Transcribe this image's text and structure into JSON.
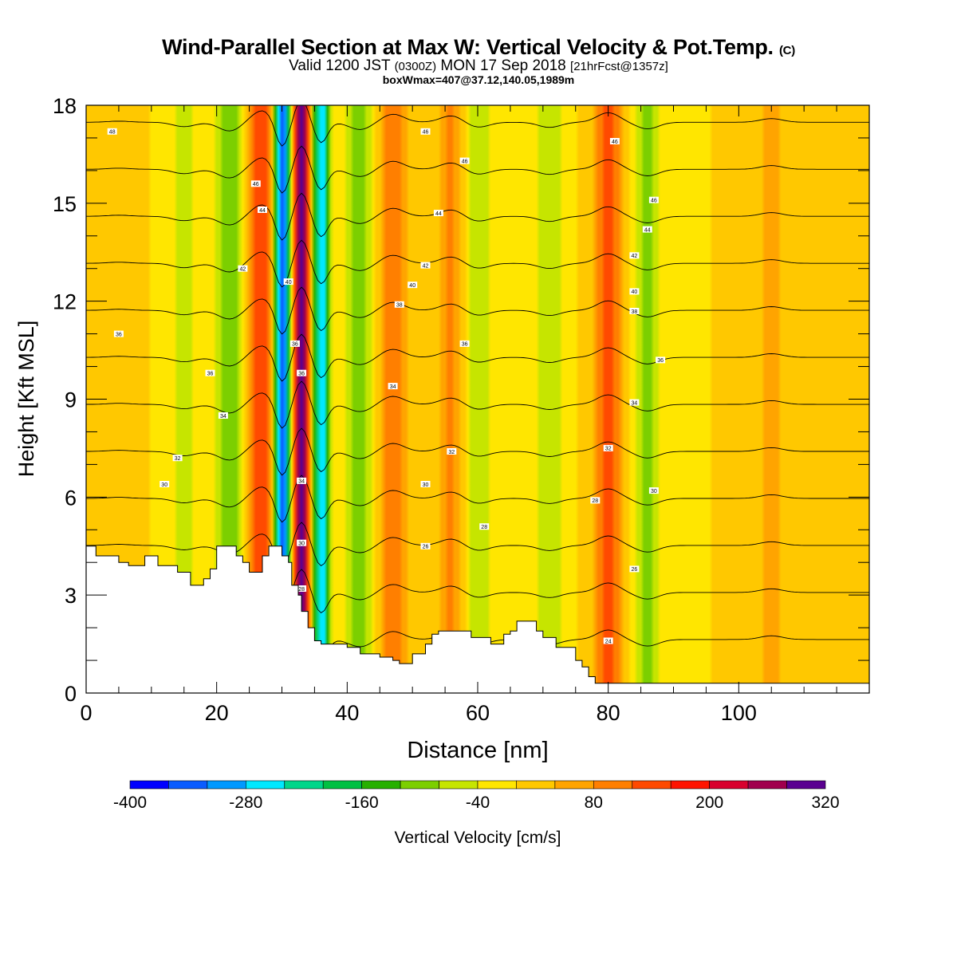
{
  "header": {
    "title_main": "Wind-Parallel Section at Max W: Vertical Velocity & Pot.Temp.",
    "title_copyright": "(C)",
    "valid_a": "Valid 1200 JST",
    "valid_zulu": "(0300Z)",
    "valid_b": "MON 17 Sep 2018",
    "valid_fcst": "[21hrFcst@1357z]",
    "box_info": "boxWmax=407@37.12,140.05,1989m"
  },
  "chart_data": {
    "type": "heatmap",
    "title": "Wind-Parallel Section at Max W: Vertical Velocity & Pot.Temp.",
    "xlabel": "Distance [nm]",
    "ylabel": "Height [Kft MSL]",
    "xlim": [
      0,
      120
    ],
    "ylim": [
      0,
      18
    ],
    "x_ticks": [
      0,
      20,
      40,
      60,
      80,
      100
    ],
    "y_ticks": [
      0,
      3,
      6,
      9,
      12,
      15,
      18
    ],
    "colorbar": {
      "label": "Vertical Velocity [cm/s]",
      "levels": [
        -400,
        -360,
        -320,
        -280,
        -240,
        -200,
        -160,
        -120,
        -80,
        -40,
        0,
        40,
        80,
        120,
        160,
        200,
        240,
        280,
        320
      ],
      "tick_labels": [
        "-400",
        "-280",
        "-160",
        "-40",
        "80",
        "200",
        "320"
      ],
      "colors": [
        "#0000ff",
        "#0a5cff",
        "#0099ff",
        "#00e8ff",
        "#00d68a",
        "#00c043",
        "#27b000",
        "#7ccf00",
        "#c6e500",
        "#ffe600",
        "#ffc800",
        "#ffa400",
        "#ff7f00",
        "#ff4a00",
        "#ff1400",
        "#d8002e",
        "#a0004d",
        "#5a0090"
      ]
    },
    "vertical_velocity_features": [
      {
        "x": 5,
        "w": 15,
        "kind": "updraft"
      },
      {
        "x": 15,
        "w": -60,
        "kind": "downdraft"
      },
      {
        "x": 22,
        "w": -120,
        "kind": "downdraft"
      },
      {
        "x": 27,
        "w": 160,
        "kind": "updraft"
      },
      {
        "x": 30,
        "w": -360,
        "kind": "downdraft"
      },
      {
        "x": 33,
        "w": 320,
        "kind": "updraft"
      },
      {
        "x": 36,
        "w": -280,
        "kind": "downdraft"
      },
      {
        "x": 42,
        "w": -100,
        "kind": "downdraft"
      },
      {
        "x": 47,
        "w": 110,
        "kind": "updraft"
      },
      {
        "x": 56,
        "w": 90,
        "kind": "updraft"
      },
      {
        "x": 60,
        "w": -70,
        "kind": "downdraft"
      },
      {
        "x": 71,
        "w": -70,
        "kind": "downdraft"
      },
      {
        "x": 80,
        "w": 130,
        "kind": "updraft"
      },
      {
        "x": 86,
        "w": -90,
        "kind": "downdraft"
      },
      {
        "x": 105,
        "w": 50,
        "kind": "updraft"
      }
    ],
    "theta_contours": [
      24,
      26,
      28,
      30,
      32,
      34,
      36,
      38,
      40,
      42,
      44,
      46,
      48
    ],
    "contour_labels": [
      {
        "text": "48",
        "x": 4,
        "y": 17.2
      },
      {
        "text": "46",
        "x": 52,
        "y": 17.2
      },
      {
        "text": "46",
        "x": 81,
        "y": 16.9
      },
      {
        "text": "46",
        "x": 26,
        "y": 15.6
      },
      {
        "text": "46",
        "x": 58,
        "y": 16.3
      },
      {
        "text": "44",
        "x": 27,
        "y": 14.8
      },
      {
        "text": "44",
        "x": 54,
        "y": 14.7
      },
      {
        "text": "46",
        "x": 87,
        "y": 15.1
      },
      {
        "text": "44",
        "x": 86,
        "y": 14.2
      },
      {
        "text": "42",
        "x": 24,
        "y": 13.0
      },
      {
        "text": "42",
        "x": 52,
        "y": 13.1
      },
      {
        "text": "42",
        "x": 84,
        "y": 13.4
      },
      {
        "text": "40",
        "x": 31,
        "y": 12.6
      },
      {
        "text": "40",
        "x": 50,
        "y": 12.5
      },
      {
        "text": "40",
        "x": 84,
        "y": 12.3
      },
      {
        "text": "38",
        "x": 48,
        "y": 11.9
      },
      {
        "text": "38",
        "x": 84,
        "y": 11.7
      },
      {
        "text": "36",
        "x": 5,
        "y": 11.0
      },
      {
        "text": "36",
        "x": 32,
        "y": 10.7
      },
      {
        "text": "36",
        "x": 58,
        "y": 10.7
      },
      {
        "text": "36",
        "x": 88,
        "y": 10.2
      },
      {
        "text": "36",
        "x": 33,
        "y": 9.8
      },
      {
        "text": "36",
        "x": 19,
        "y": 9.8
      },
      {
        "text": "34",
        "x": 47,
        "y": 9.4
      },
      {
        "text": "34",
        "x": 84,
        "y": 8.9
      },
      {
        "text": "34",
        "x": 21,
        "y": 8.5
      },
      {
        "text": "32",
        "x": 14,
        "y": 7.2
      },
      {
        "text": "32",
        "x": 56,
        "y": 7.4
      },
      {
        "text": "32",
        "x": 80,
        "y": 7.5
      },
      {
        "text": "34",
        "x": 33,
        "y": 6.5
      },
      {
        "text": "30",
        "x": 12,
        "y": 6.4
      },
      {
        "text": "30",
        "x": 52,
        "y": 6.4
      },
      {
        "text": "30",
        "x": 87,
        "y": 6.2
      },
      {
        "text": "28",
        "x": 78,
        "y": 5.9
      },
      {
        "text": "28",
        "x": 61,
        "y": 5.1
      },
      {
        "text": "30",
        "x": 33,
        "y": 4.6
      },
      {
        "text": "26",
        "x": 52,
        "y": 4.5
      },
      {
        "text": "26",
        "x": 84,
        "y": 3.8
      },
      {
        "text": "28",
        "x": 33,
        "y": 3.2
      },
      {
        "text": "24",
        "x": 80,
        "y": 1.6
      }
    ],
    "terrain": [
      [
        0,
        4.5
      ],
      [
        1.5,
        4.5
      ],
      [
        1.5,
        4.2
      ],
      [
        5,
        4.2
      ],
      [
        5,
        4.0
      ],
      [
        6.5,
        4.0
      ],
      [
        6.5,
        3.9
      ],
      [
        9,
        3.9
      ],
      [
        9,
        4.2
      ],
      [
        11,
        4.2
      ],
      [
        11,
        3.9
      ],
      [
        14,
        3.9
      ],
      [
        14,
        3.7
      ],
      [
        16,
        3.7
      ],
      [
        16,
        3.3
      ],
      [
        18,
        3.3
      ],
      [
        18,
        3.5
      ],
      [
        19,
        3.5
      ],
      [
        19,
        3.8
      ],
      [
        20,
        3.8
      ],
      [
        20,
        4.5
      ],
      [
        23,
        4.5
      ],
      [
        23,
        4.2
      ],
      [
        24,
        4.2
      ],
      [
        24,
        4.0
      ],
      [
        25,
        4.0
      ],
      [
        25,
        3.7
      ],
      [
        27,
        3.7
      ],
      [
        27,
        4.2
      ],
      [
        28,
        4.2
      ],
      [
        28,
        4.5
      ],
      [
        30,
        4.5
      ],
      [
        30,
        4.2
      ],
      [
        31,
        4.2
      ],
      [
        31,
        4.0
      ],
      [
        31.5,
        4.0
      ],
      [
        31.5,
        3.3
      ],
      [
        32.5,
        3.3
      ],
      [
        32.5,
        3.0
      ],
      [
        33,
        3.0
      ],
      [
        33,
        2.5
      ],
      [
        34,
        2.5
      ],
      [
        34,
        2.0
      ],
      [
        35,
        2.0
      ],
      [
        35,
        1.6
      ],
      [
        36,
        1.6
      ],
      [
        36,
        1.5
      ],
      [
        40,
        1.5
      ],
      [
        40,
        1.4
      ],
      [
        42,
        1.4
      ],
      [
        42,
        1.2
      ],
      [
        45,
        1.2
      ],
      [
        45,
        1.1
      ],
      [
        47,
        1.1
      ],
      [
        47,
        1.0
      ],
      [
        48,
        1.0
      ],
      [
        48,
        0.9
      ],
      [
        50,
        0.9
      ],
      [
        50,
        1.2
      ],
      [
        52,
        1.2
      ],
      [
        52,
        1.5
      ],
      [
        53,
        1.5
      ],
      [
        53,
        1.8
      ],
      [
        54,
        1.8
      ],
      [
        54,
        1.9
      ],
      [
        59,
        1.9
      ],
      [
        59,
        1.7
      ],
      [
        62,
        1.7
      ],
      [
        62,
        1.5
      ],
      [
        64,
        1.5
      ],
      [
        64,
        1.8
      ],
      [
        65,
        1.8
      ],
      [
        65,
        1.9
      ],
      [
        66,
        1.9
      ],
      [
        66,
        2.2
      ],
      [
        69,
        2.2
      ],
      [
        69,
        1.9
      ],
      [
        70,
        1.9
      ],
      [
        70,
        1.7
      ],
      [
        72,
        1.7
      ],
      [
        72,
        1.4
      ],
      [
        75,
        1.4
      ],
      [
        75,
        1.0
      ],
      [
        76,
        1.0
      ],
      [
        76,
        0.8
      ],
      [
        77,
        0.8
      ],
      [
        77,
        0.5
      ],
      [
        78,
        0.5
      ],
      [
        78,
        0.3
      ],
      [
        79,
        0.3
      ],
      [
        79,
        0.3
      ],
      [
        120,
        0.3
      ]
    ]
  }
}
